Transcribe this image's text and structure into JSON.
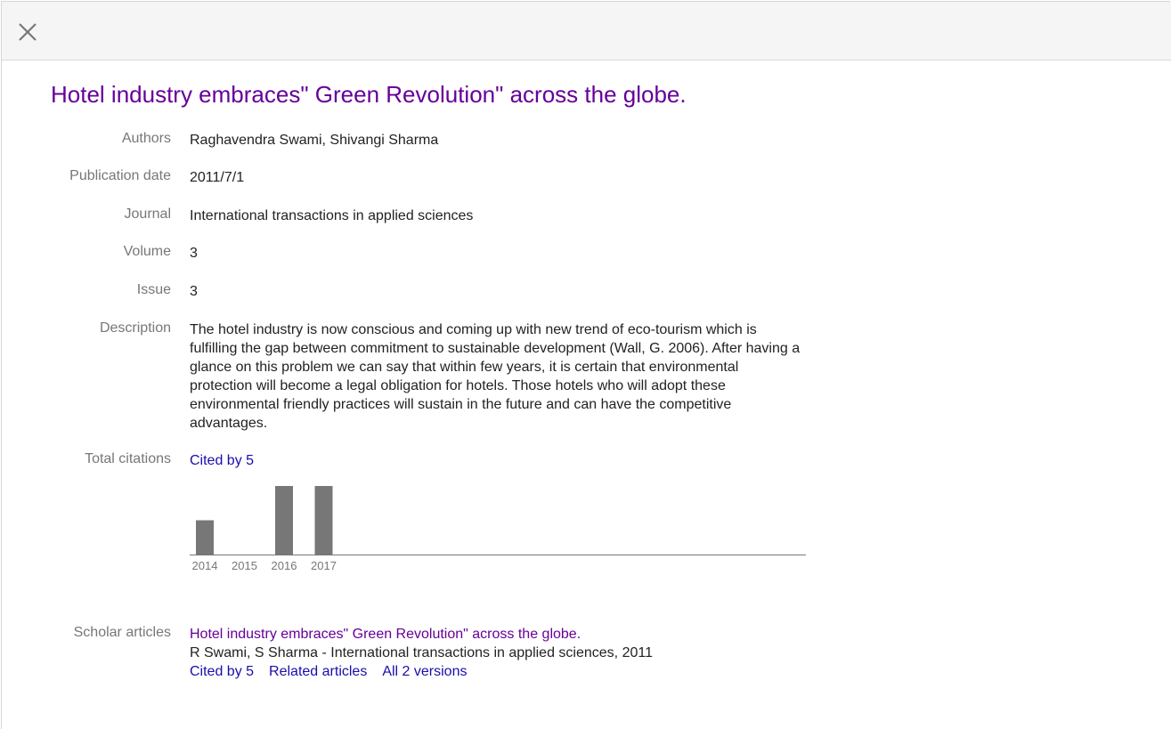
{
  "close_icon": "close-icon",
  "title": "Hotel industry embraces\" Green Revolution\" across the globe.",
  "fields": {
    "authors": {
      "label": "Authors",
      "value": "Raghavendra Swami, Shivangi Sharma"
    },
    "pub_date": {
      "label": "Publication date",
      "value": "2011/7/1"
    },
    "journal": {
      "label": "Journal",
      "value": "International transactions in applied sciences"
    },
    "volume": {
      "label": "Volume",
      "value": "3"
    },
    "issue": {
      "label": "Issue",
      "value": "3"
    },
    "description": {
      "label": "Description",
      "value": "The hotel industry is now conscious and coming up with new trend of eco-tourism which is fulfilling the gap between commitment to sustainable development (Wall, G. 2006). After having a glance on this problem we can say that within few years, it is certain that environmental protection will become a legal obligation for hotels. Those hotels who will adopt these environmental friendly practices will sustain in the future and can have the competitive advantages."
    },
    "citations": {
      "label": "Total citations",
      "value": "Cited by 5"
    }
  },
  "chart_data": {
    "type": "bar",
    "categories": [
      "2014",
      "2015",
      "2016",
      "2017"
    ],
    "values": [
      1,
      0,
      2,
      2
    ],
    "ylim": [
      0,
      2
    ],
    "bar_color": "#777777",
    "grid": false
  },
  "scholar": {
    "label": "Scholar articles",
    "title": "Hotel industry embraces\" Green Revolution\" across the globe.",
    "meta": "R Swami, S Sharma - International transactions in applied sciences, 2011",
    "links": [
      "Cited by 5",
      "Related articles",
      "All 2 versions"
    ]
  }
}
